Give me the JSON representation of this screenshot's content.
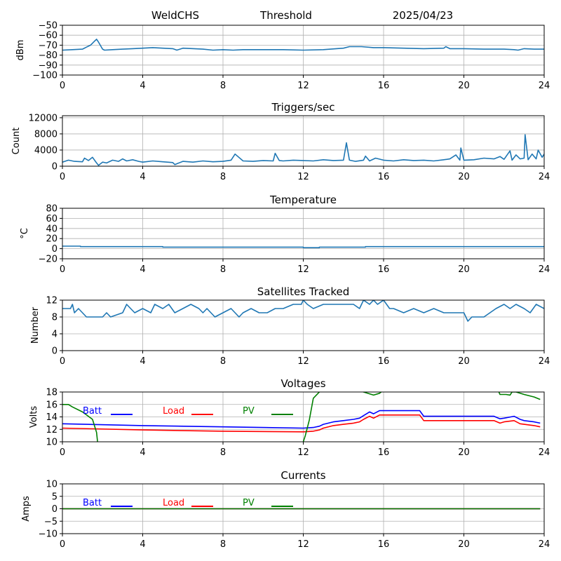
{
  "header": {
    "left": "WeldCHS",
    "center": "Threshold",
    "right": "2025/04/23"
  },
  "colors": {
    "series": "#1f77b4",
    "batt": "#0000ff",
    "load": "#ff0000",
    "pv": "#008000",
    "grid": "#b0b0b0"
  },
  "x_ticks": [
    0,
    4,
    8,
    12,
    16,
    20,
    24
  ],
  "chart_data": [
    {
      "id": "threshold",
      "type": "line",
      "title": "",
      "ylabel": "dBm",
      "xlim": [
        0,
        24
      ],
      "ylim": [
        -100,
        -50
      ],
      "yticks": [
        -50,
        -60,
        -70,
        -80,
        -90,
        -100
      ],
      "grid": true,
      "series": [
        {
          "color": "#1f77b4",
          "x": [
            0,
            0.5,
            1,
            1.2,
            1.4,
            1.6,
            1.7,
            1.8,
            2.0,
            2.1,
            2.5,
            3,
            3.5,
            4,
            4.5,
            5,
            5.5,
            5.7,
            6,
            7,
            7.5,
            8,
            8.5,
            9,
            10,
            11,
            12,
            13,
            14,
            14.3,
            14.9,
            15.5,
            16,
            17,
            18,
            19,
            19.1,
            19.3,
            20,
            21,
            22,
            22.5,
            22.7,
            23,
            23.5,
            24
          ],
          "y": [
            -75,
            -74.5,
            -74,
            -72,
            -70,
            -66,
            -64,
            -67,
            -74,
            -75,
            -74.5,
            -74,
            -73.5,
            -73,
            -72.5,
            -73,
            -73.5,
            -75,
            -73,
            -74,
            -75,
            -74.5,
            -75,
            -74.5,
            -74.5,
            -74.5,
            -75,
            -74.5,
            -73,
            -71.5,
            -71.5,
            -72.5,
            -72.5,
            -73,
            -73.5,
            -73,
            -71.5,
            -73.5,
            -73.5,
            -74,
            -74,
            -74.5,
            -75,
            -73.5,
            -74,
            -74
          ]
        }
      ]
    },
    {
      "id": "triggers",
      "type": "line",
      "title": "Triggers/sec",
      "ylabel": "Count",
      "xlim": [
        0,
        24
      ],
      "ylim": [
        0,
        12500
      ],
      "yticks": [
        0,
        4000,
        8000,
        12000
      ],
      "grid": true,
      "series": [
        {
          "color": "#1f77b4",
          "x": [
            0,
            0.3,
            0.6,
            1,
            1.1,
            1.3,
            1.5,
            1.7,
            1.8,
            2.0,
            2.2,
            2.5,
            2.8,
            3.0,
            3.2,
            3.5,
            3.8,
            4,
            4.5,
            5,
            5.5,
            5.6,
            6,
            6.5,
            7,
            7.5,
            8,
            8.4,
            8.6,
            9,
            9.5,
            10,
            10.5,
            10.6,
            10.8,
            11,
            11.5,
            12,
            12.5,
            13,
            13.5,
            14,
            14.15,
            14.3,
            14.6,
            15,
            15.1,
            15.3,
            15.6,
            16,
            16.5,
            17,
            17.5,
            18,
            18.5,
            19,
            19.3,
            19.6,
            19.8,
            19.85,
            20,
            20.5,
            21,
            21.5,
            21.8,
            22,
            22.3,
            22.4,
            22.6,
            22.8,
            23,
            23.05,
            23.2,
            23.4,
            23.6,
            23.7,
            23.9,
            24
          ],
          "y": [
            1000,
            1500,
            1200,
            1100,
            2000,
            1400,
            2200,
            800,
            200,
            1000,
            800,
            1500,
            1200,
            1800,
            1300,
            1600,
            1200,
            1000,
            1300,
            1100,
            900,
            400,
            1200,
            1000,
            1300,
            1100,
            1200,
            1500,
            3000,
            1300,
            1200,
            1400,
            1300,
            3200,
            1400,
            1300,
            1500,
            1400,
            1300,
            1600,
            1400,
            1500,
            5800,
            1500,
            1200,
            1500,
            2500,
            1300,
            2000,
            1500,
            1300,
            1600,
            1400,
            1500,
            1300,
            1600,
            1800,
            2800,
            1500,
            4500,
            1500,
            1600,
            2000,
            1800,
            2400,
            1700,
            3800,
            1500,
            2800,
            1800,
            2000,
            7800,
            1600,
            3000,
            1800,
            4000,
            2200,
            3000
          ]
        }
      ]
    },
    {
      "id": "temperature",
      "type": "line",
      "title": "Temperature",
      "ylabel": "°C",
      "xlim": [
        0,
        24
      ],
      "ylim": [
        -20,
        80
      ],
      "yticks": [
        -20,
        0,
        20,
        40,
        60,
        80
      ],
      "grid": true,
      "series": [
        {
          "color": "#1f77b4",
          "x": [
            0,
            0.9,
            0.9,
            5.0,
            5.0,
            12.0,
            12.0,
            12.8,
            12.8,
            15.1,
            15.1,
            24
          ],
          "y": [
            5,
            5,
            4,
            4,
            3,
            3,
            2,
            2,
            3,
            3,
            4,
            4
          ]
        }
      ]
    },
    {
      "id": "satellites",
      "type": "line",
      "title": "Satellites Tracked",
      "ylabel": "Number",
      "xlim": [
        0,
        24
      ],
      "ylim": [
        0,
        12
      ],
      "yticks": [
        0,
        4,
        8,
        12
      ],
      "grid": true,
      "series": [
        {
          "color": "#1f77b4",
          "x": [
            0,
            0.4,
            0.5,
            0.6,
            0.8,
            1.0,
            1.2,
            2.0,
            2.2,
            2.4,
            3.0,
            3.2,
            3.4,
            3.6,
            4.0,
            4.4,
            4.6,
            5.0,
            5.3,
            5.6,
            6.0,
            6.4,
            6.8,
            7.0,
            7.2,
            7.6,
            8.0,
            8.4,
            8.8,
            9.0,
            9.4,
            9.8,
            10.2,
            10.6,
            11.0,
            11.5,
            11.9,
            12.0,
            12.2,
            12.5,
            13.0,
            13.5,
            14.0,
            14.5,
            14.8,
            15.0,
            15.3,
            15.5,
            15.7,
            16.0,
            16.3,
            16.5,
            17.0,
            17.5,
            18.0,
            18.5,
            19.0,
            19.5,
            20.0,
            20.2,
            20.4,
            20.6,
            21.0,
            21.3,
            21.6,
            22.0,
            22.3,
            22.6,
            23.0,
            23.3,
            23.6,
            24
          ],
          "y": [
            10,
            10,
            11,
            9,
            10,
            9,
            8,
            8,
            9,
            8,
            9,
            11,
            10,
            9,
            10,
            9,
            11,
            10,
            11,
            9,
            10,
            11,
            10,
            9,
            10,
            8,
            9,
            10,
            8,
            9,
            10,
            9,
            9,
            10,
            10,
            11,
            11,
            12,
            11,
            10,
            11,
            11,
            11,
            11,
            10,
            12,
            11,
            12,
            11,
            12,
            10,
            10,
            9,
            10,
            9,
            10,
            9,
            9,
            9,
            7,
            8,
            8,
            8,
            9,
            10,
            11,
            10,
            11,
            10,
            9,
            11,
            10
          ]
        }
      ]
    },
    {
      "id": "voltages",
      "type": "line",
      "title": "Voltages",
      "ylabel": "Volts",
      "xlim": [
        0,
        24
      ],
      "ylim": [
        10,
        18
      ],
      "yticks": [
        10,
        12,
        14,
        16,
        18
      ],
      "grid": true,
      "legend_placement": "top-left",
      "series": [
        {
          "name": "Batt",
          "color": "#0000ff",
          "x": [
            0,
            4,
            8,
            12,
            12.5,
            12.8,
            13.0,
            13.5,
            14.0,
            14.5,
            14.8,
            15.0,
            15.3,
            15.5,
            15.8,
            16.0,
            17.0,
            17.8,
            18.0,
            19.0,
            20.0,
            21.0,
            21.5,
            21.8,
            22.0,
            22.5,
            22.8,
            23.0,
            23.5,
            23.8
          ],
          "y": [
            12.9,
            12.6,
            12.4,
            12.2,
            12.3,
            12.5,
            12.8,
            13.2,
            13.4,
            13.6,
            13.8,
            14.2,
            14.8,
            14.5,
            15.0,
            15.0,
            15.0,
            15.0,
            14.1,
            14.1,
            14.1,
            14.1,
            14.1,
            13.7,
            13.8,
            14.1,
            13.6,
            13.4,
            13.2,
            13.0
          ]
        },
        {
          "name": "Load",
          "color": "#ff0000",
          "x": [
            0,
            4,
            8,
            12,
            12.5,
            12.8,
            13.0,
            13.5,
            14.0,
            14.5,
            14.8,
            15.0,
            15.3,
            15.5,
            15.8,
            16.0,
            17.0,
            17.8,
            18.0,
            19.0,
            20.0,
            21.0,
            21.5,
            21.8,
            22.0,
            22.5,
            22.8,
            23.0,
            23.5,
            23.8
          ],
          "y": [
            12.2,
            11.9,
            11.7,
            11.6,
            11.7,
            11.9,
            12.2,
            12.6,
            12.8,
            13.0,
            13.2,
            13.6,
            14.1,
            13.8,
            14.3,
            14.3,
            14.3,
            14.3,
            13.4,
            13.4,
            13.4,
            13.4,
            13.4,
            13.0,
            13.2,
            13.4,
            12.9,
            12.8,
            12.6,
            12.4
          ]
        },
        {
          "name": "PV",
          "color": "#008000",
          "segments": [
            {
              "x": [
                0,
                0.3,
                0.5,
                1.0,
                1.5,
                1.7,
                1.75
              ],
              "y": [
                16.0,
                16.0,
                15.6,
                14.8,
                13.6,
                11.5,
                10.0
              ]
            },
            {
              "x": [
                12.0,
                12.1,
                12.3,
                12.5,
                12.8,
                13.0
              ],
              "y": [
                10.0,
                11.0,
                13.5,
                17.0,
                18.0,
                18.3
              ]
            },
            {
              "x": [
                14.8,
                15.0,
                15.5,
                15.8,
                16.0
              ],
              "y": [
                18.3,
                18.0,
                17.5,
                17.8,
                18.3
              ]
            },
            {
              "x": [
                21.7,
                21.8,
                22.1,
                22.3,
                22.4,
                22.6,
                23.0,
                23.5,
                23.8
              ],
              "y": [
                18.3,
                17.6,
                17.6,
                17.5,
                18.0,
                18.0,
                17.6,
                17.2,
                16.8
              ]
            }
          ]
        }
      ]
    },
    {
      "id": "currents",
      "type": "line",
      "title": "Currents",
      "ylabel": "Amps",
      "xlim": [
        0,
        24
      ],
      "ylim": [
        -10,
        10
      ],
      "yticks": [
        -10,
        -5,
        0,
        5,
        10
      ],
      "grid": true,
      "legend_placement": "top-left",
      "series": [
        {
          "name": "Batt",
          "color": "#0000ff",
          "x": [
            0,
            23.8
          ],
          "y": [
            0,
            0
          ]
        },
        {
          "name": "Load",
          "color": "#ff0000",
          "x": [
            0,
            23.8
          ],
          "y": [
            0,
            0
          ]
        },
        {
          "name": "PV",
          "color": "#008000",
          "x": [
            0,
            23.8
          ],
          "y": [
            0,
            0
          ]
        }
      ]
    }
  ]
}
